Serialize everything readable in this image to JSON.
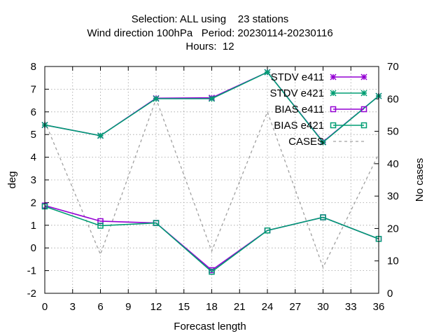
{
  "chart_data": {
    "type": "line",
    "title_lines": [
      "Selection: ALL using    23 stations",
      "Wind direction 100hPa   Period: 20230114-20230116",
      "Hours:  12"
    ],
    "xlabel": "Forecast length",
    "ylabel": "deg",
    "y2label": "No cases",
    "xlim": [
      0,
      36
    ],
    "ylim": [
      -2,
      8
    ],
    "y2lim": [
      0,
      70
    ],
    "xticks": [
      0,
      3,
      6,
      9,
      12,
      15,
      18,
      21,
      24,
      27,
      30,
      33,
      36
    ],
    "yticks": [
      -2,
      -1,
      0,
      1,
      2,
      3,
      4,
      5,
      6,
      7,
      8
    ],
    "y2ticks": [
      0,
      10,
      20,
      30,
      40,
      50,
      60,
      70
    ],
    "grid": true,
    "legend_position": "top-right",
    "series": [
      {
        "name": "STDV e411",
        "axis": "y",
        "color": "#9400d3",
        "marker": "star",
        "dashed": false,
        "x": [
          0,
          6,
          12,
          18,
          24,
          30,
          36
        ],
        "y": [
          5.42,
          4.95,
          6.6,
          6.62,
          7.75,
          4.68,
          6.7
        ]
      },
      {
        "name": "STDV e421",
        "axis": "y",
        "color": "#009e73",
        "marker": "star",
        "dashed": false,
        "x": [
          0,
          6,
          12,
          18,
          24,
          30,
          36
        ],
        "y": [
          5.42,
          4.95,
          6.58,
          6.58,
          7.75,
          4.66,
          6.7
        ]
      },
      {
        "name": "BIAS e411",
        "axis": "y",
        "color": "#9400d3",
        "marker": "square",
        "dashed": false,
        "x": [
          0,
          6,
          12,
          18,
          24,
          30,
          36
        ],
        "y": [
          1.87,
          1.18,
          1.1,
          -0.98,
          0.77,
          1.35,
          0.4
        ]
      },
      {
        "name": "BIAS e421",
        "axis": "y",
        "color": "#009e73",
        "marker": "square",
        "dashed": false,
        "x": [
          0,
          6,
          12,
          18,
          24,
          30,
          36
        ],
        "y": [
          1.83,
          0.98,
          1.1,
          -1.05,
          0.77,
          1.35,
          0.4
        ]
      },
      {
        "name": "CASES",
        "axis": "y2",
        "color": "#a0a0a0",
        "marker": "none",
        "dashed": true,
        "x": [
          0,
          6,
          12,
          18,
          24,
          30,
          36
        ],
        "y": [
          53,
          12,
          60,
          13,
          56,
          8,
          43
        ]
      }
    ]
  }
}
